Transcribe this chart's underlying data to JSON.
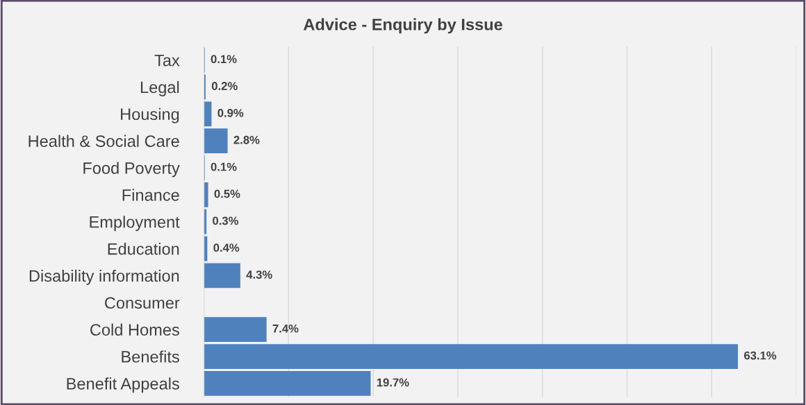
{
  "chart_data": {
    "type": "bar",
    "orientation": "horizontal",
    "title": "Advice - Enquiry by Issue",
    "categories": [
      "Tax",
      "Legal",
      "Housing",
      "Health & Social Care",
      "Food Poverty",
      "Finance",
      "Employment",
      "Education",
      "Disability information",
      "Consumer",
      "Cold Homes",
      "Benefits",
      "Benefit Appeals"
    ],
    "values": [
      0.1,
      0.2,
      0.9,
      2.8,
      0.1,
      0.5,
      0.3,
      0.4,
      4.3,
      null,
      7.4,
      63.1,
      19.7
    ],
    "value_labels": [
      "0.1%",
      "0.2%",
      "0.9%",
      "2.8%",
      "0.1%",
      "0.5%",
      "0.3%",
      "0.4%",
      "4.3%",
      null,
      "7.4%",
      "63.1%",
      "19.7%"
    ],
    "color": "#4f81bd",
    "xlim": [
      0,
      70
    ],
    "xticks": [
      {
        "value": 0,
        "label": null
      },
      {
        "value": 10,
        "label": null
      },
      {
        "value": 20,
        "label": null
      },
      {
        "value": 30,
        "label": null
      },
      {
        "value": 40,
        "label": null
      },
      {
        "value": 50,
        "label": null
      },
      {
        "value": 60,
        "label": null
      },
      {
        "value": 70,
        "label": null
      }
    ],
    "tick_labels": "y",
    "grid": "x",
    "legend": false
  }
}
